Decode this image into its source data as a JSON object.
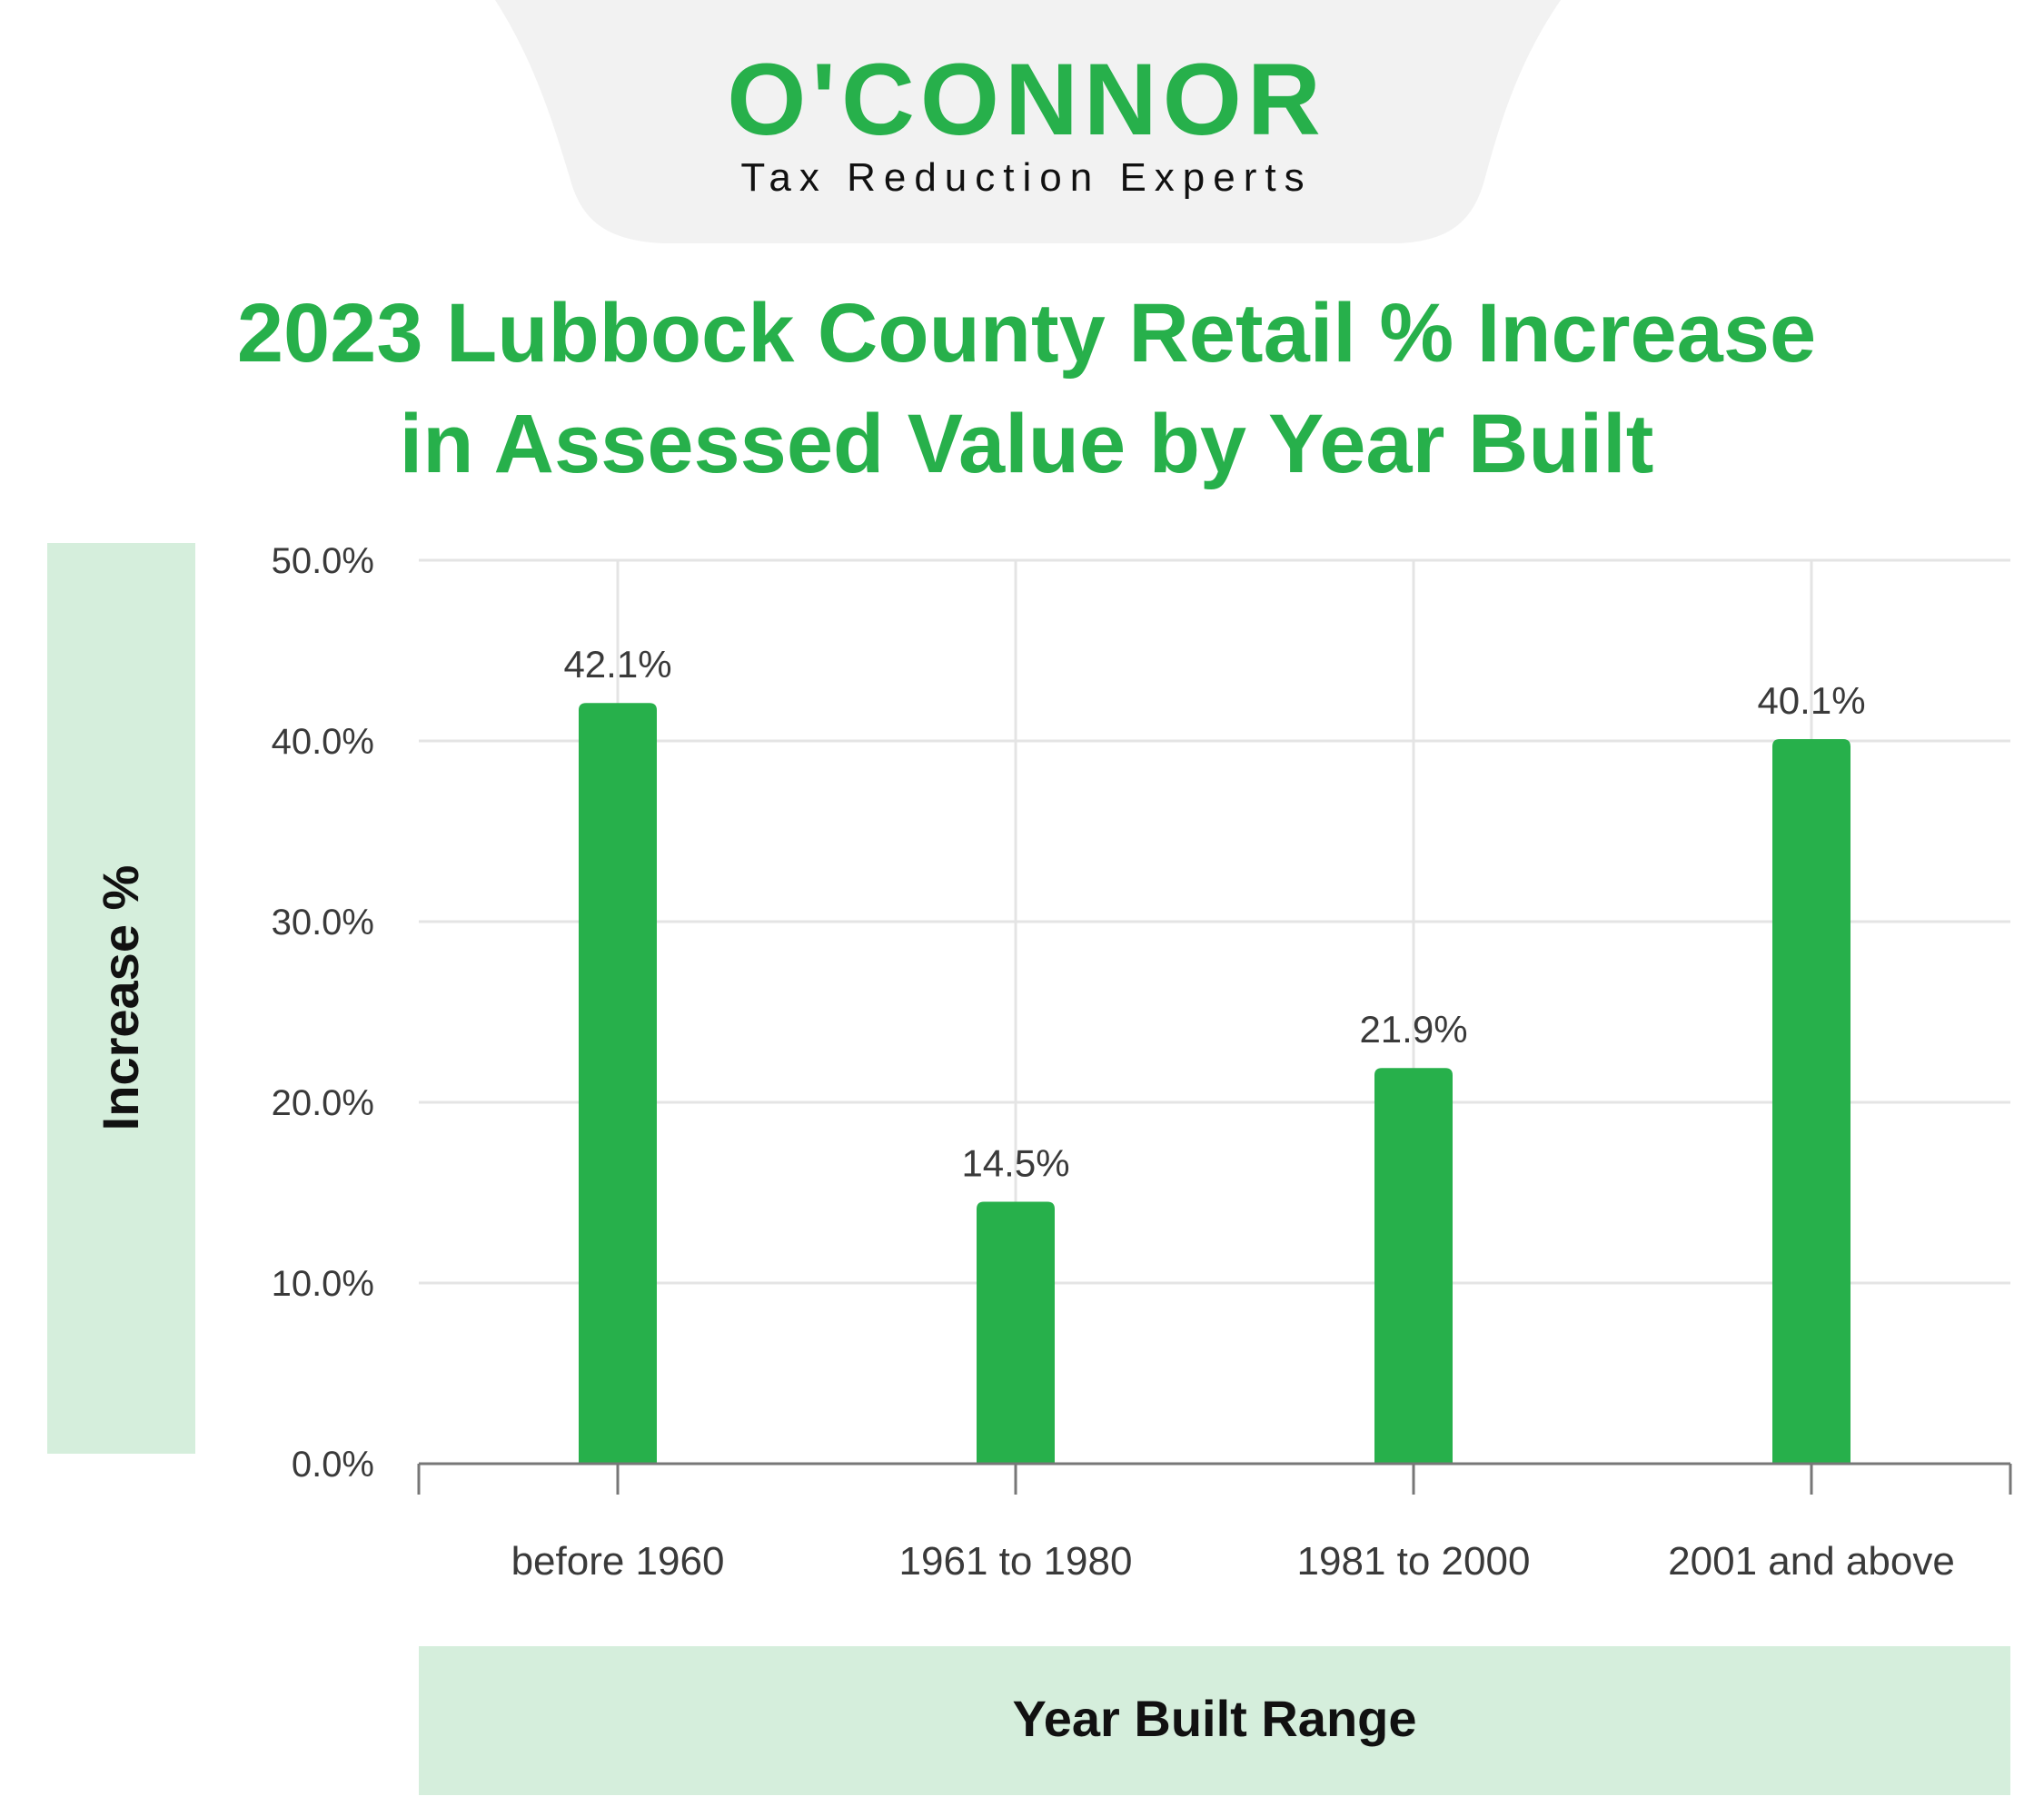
{
  "brand": {
    "logo_text": "O'CONNOR",
    "tagline": "Tax Reduction Experts"
  },
  "colors": {
    "accent": "#27b04b",
    "panel_bg": "#d5eedc",
    "header_bg": "#f2f2f2",
    "grid": "#e4e4e4",
    "axis": "#777777",
    "text_dark": "#3a3a3a",
    "text_black": "#111111"
  },
  "chart_data": {
    "type": "bar",
    "title_lines": [
      "2023 Lubbock County Retail % Increase",
      "in Assessed Value by Year Built"
    ],
    "categories": [
      "before 1960",
      "1961 to 1980",
      "1981 to 2000",
      "2001 and above"
    ],
    "values": [
      42.1,
      14.5,
      21.9,
      40.1
    ],
    "data_labels": [
      "42.1%",
      "14.5%",
      "21.9%",
      "40.1%"
    ],
    "xlabel": "Year Built Range",
    "ylabel": "Increase %",
    "ylim": [
      0,
      50
    ],
    "yticks": [
      0,
      10,
      20,
      30,
      40,
      50
    ],
    "ytick_labels": [
      "0.0%",
      "10.0%",
      "20.0%",
      "30.0%",
      "40.0%",
      "50.0%"
    ],
    "grid": true
  }
}
